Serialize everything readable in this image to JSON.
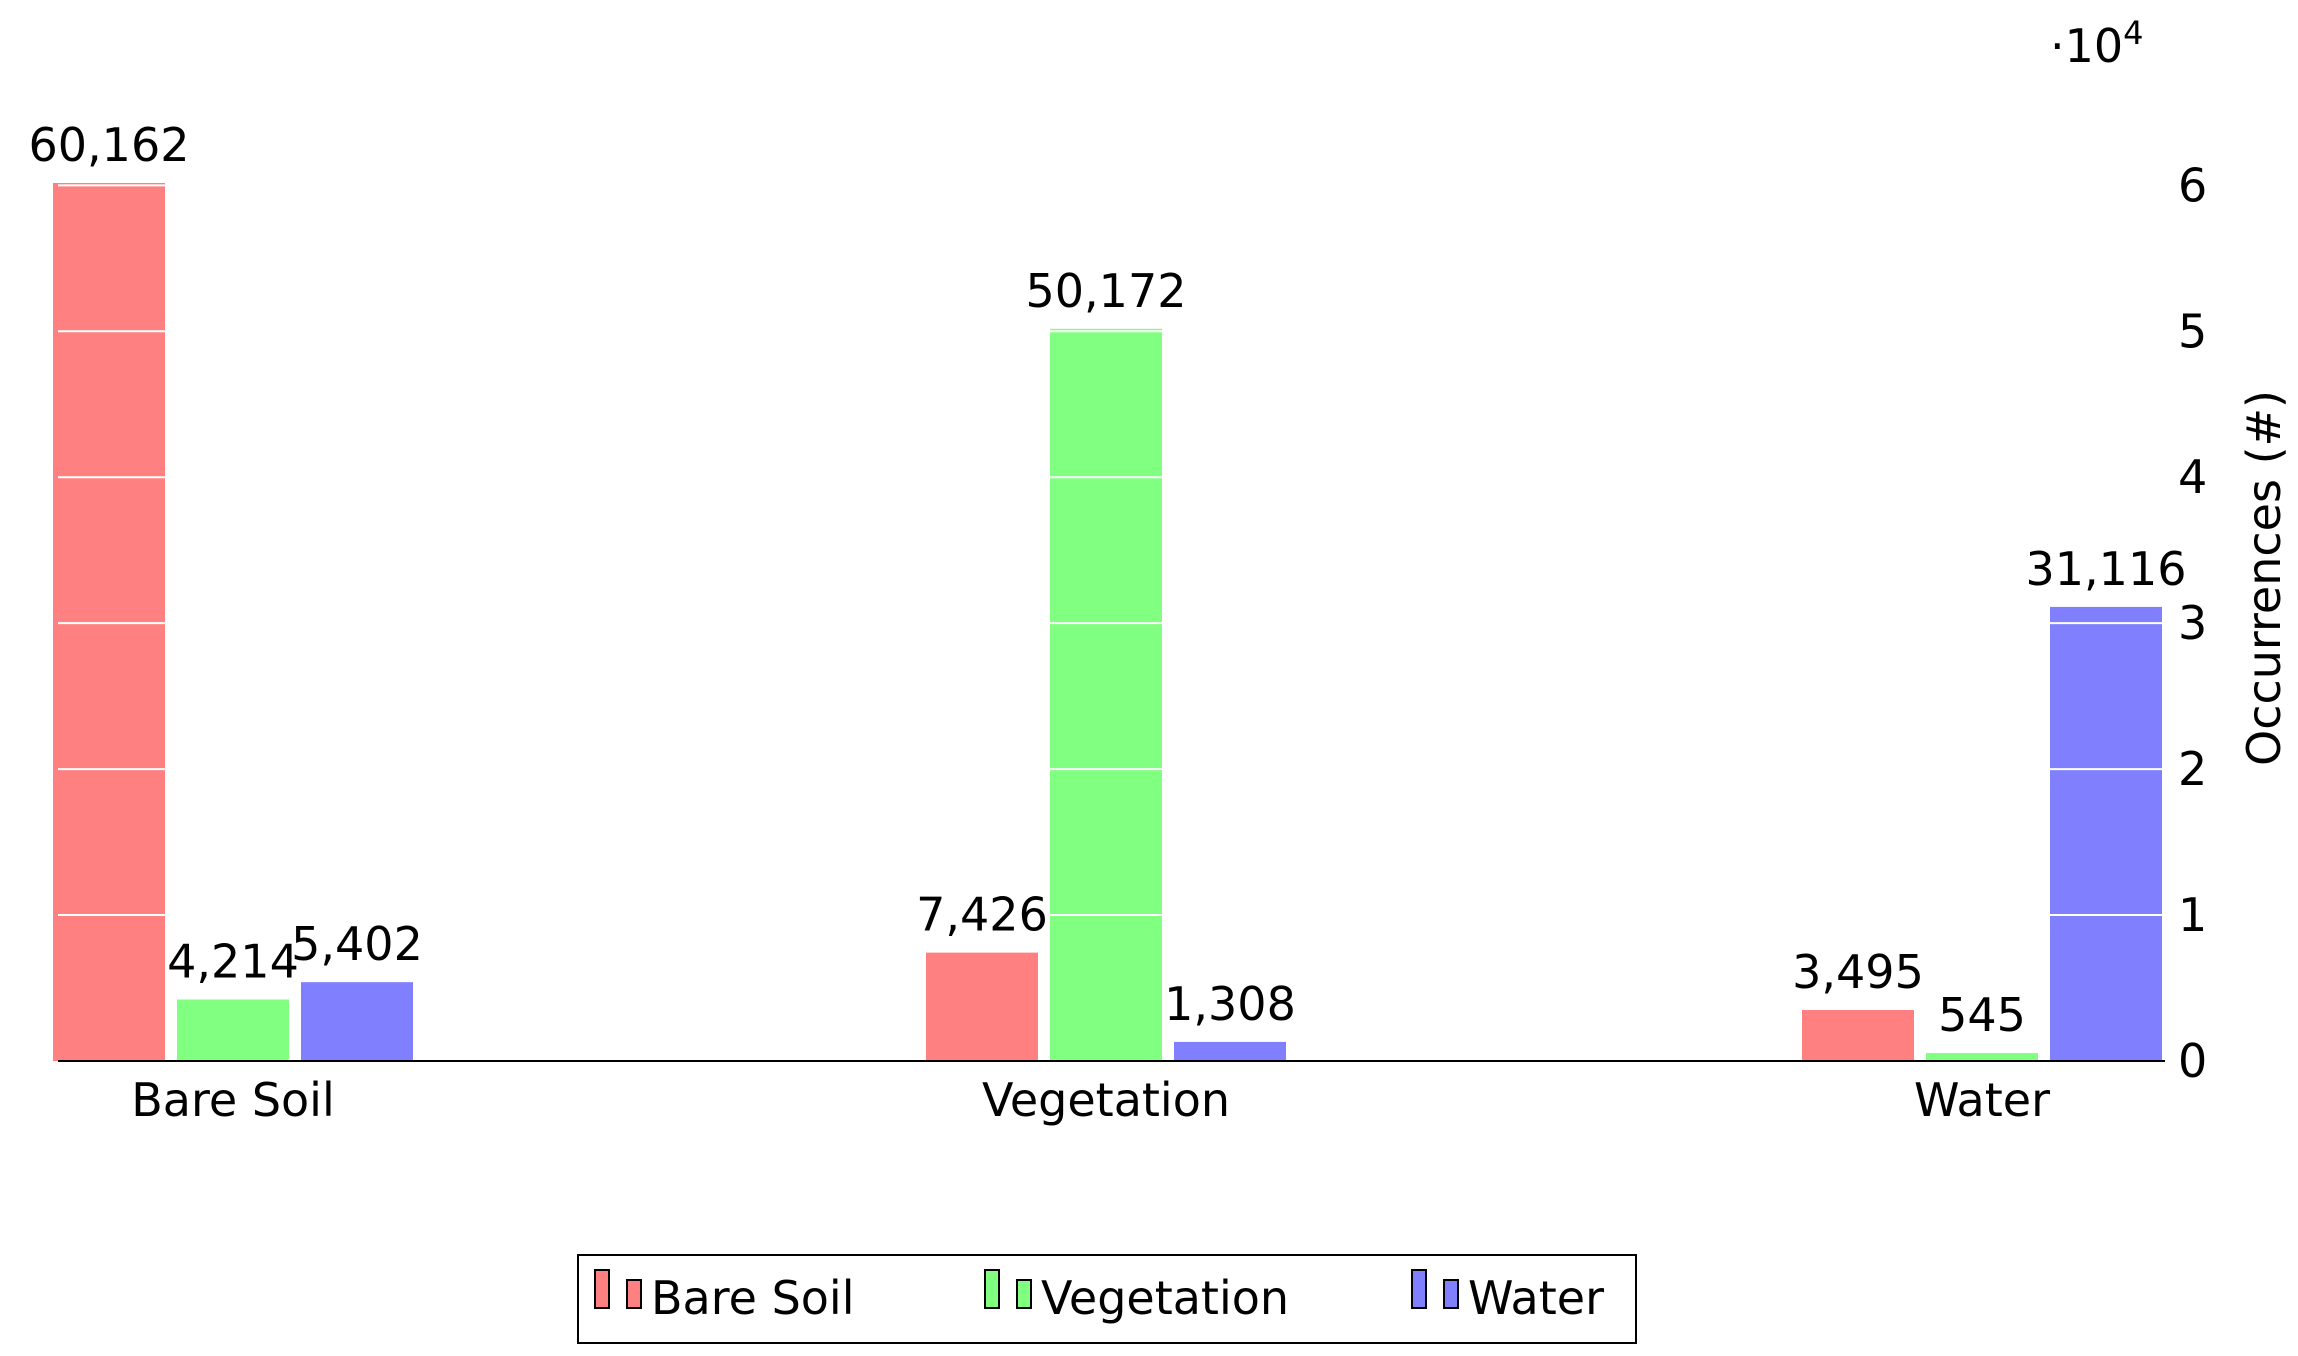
{
  "chart_data": {
    "type": "bar",
    "title": "",
    "xlabel": "",
    "ylabel": "Occurrences (#)",
    "y_multiplier_label": "·10",
    "y_multiplier_exp": "4",
    "y_axis_position": "right",
    "ylim": [
      0,
      60162
    ],
    "y_ticks": [
      0,
      10000,
      20000,
      30000,
      40000,
      50000,
      60000
    ],
    "y_tick_labels": [
      "0",
      "1",
      "2",
      "3",
      "4",
      "5",
      "6"
    ],
    "grid": "horizontal white lines inside bars",
    "categories": [
      "Bare Soil",
      "Vegetation",
      "Water"
    ],
    "series": [
      {
        "name": "Bare Soil",
        "color": "#ff8080",
        "values": [
          60162,
          7426,
          3495
        ],
        "labels": [
          "60,162",
          "7,426",
          "3,495"
        ]
      },
      {
        "name": "Vegetation",
        "color": "#80ff80",
        "values": [
          4214,
          50172,
          545
        ],
        "labels": [
          "4,214",
          "50,172",
          "545"
        ]
      },
      {
        "name": "Water",
        "color": "#8080ff",
        "values": [
          5402,
          1308,
          31116
        ],
        "labels": [
          "5,402",
          "1,308",
          "31,116"
        ]
      }
    ],
    "legend": {
      "placement": "bottom-center",
      "entries": [
        "Bare Soil",
        "Vegetation",
        "Water"
      ]
    }
  }
}
